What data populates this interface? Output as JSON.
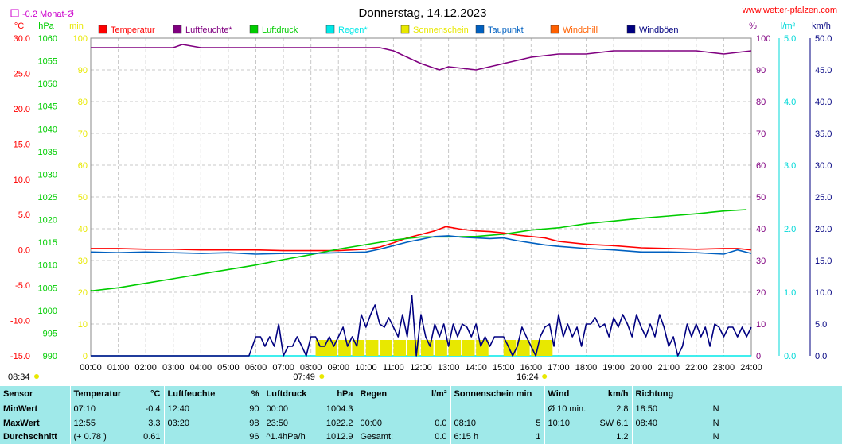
{
  "header": {
    "title": "Donnerstag, 14.12.2023",
    "source": "www.wetter-pfalzen.com",
    "monthly_avg_label": "-0.2 Monat-Ø"
  },
  "chart_data": {
    "type": "line",
    "title": "Donnerstag, 14.12.2023",
    "x_ticks": [
      "00:00",
      "01:00",
      "02:00",
      "03:00",
      "04:00",
      "05:00",
      "06:00",
      "07:00",
      "08:00",
      "09:00",
      "10:00",
      "11:00",
      "12:00",
      "13:00",
      "14:00",
      "15:00",
      "16:00",
      "17:00",
      "18:00",
      "19:00",
      "20:00",
      "21:00",
      "22:00",
      "23:00",
      "24:00"
    ],
    "xlim": [
      0,
      24
    ],
    "grid": true,
    "legend_position": "top",
    "axes": {
      "temp": {
        "unit": "°C",
        "range": [
          -15,
          30
        ],
        "ticks": [
          "30.0",
          "25.0",
          "20.0",
          "15.0",
          "10.0",
          "5.0",
          "0.0",
          "-5.0",
          "-10.0",
          "-15.0"
        ],
        "color": "#ff0000"
      },
      "pressure": {
        "unit": "hPa",
        "range": [
          990,
          1060
        ],
        "ticks": [
          "1060",
          "1055",
          "1050",
          "1045",
          "1040",
          "1035",
          "1030",
          "1025",
          "1020",
          "1015",
          "1010",
          "1005",
          "1000",
          "995",
          "990"
        ],
        "color": "#00cc00"
      },
      "minutes": {
        "unit": "min",
        "range": [
          0,
          100
        ],
        "ticks": [
          "100",
          "90",
          "80",
          "70",
          "60",
          "50",
          "40",
          "30",
          "20",
          "10",
          "0"
        ],
        "color": "#e8e800"
      },
      "humidity": {
        "unit": "%",
        "range": [
          0,
          100
        ],
        "ticks": [
          "100",
          "90",
          "80",
          "70",
          "60",
          "50",
          "40",
          "30",
          "20",
          "10",
          "0"
        ],
        "color": "#800080"
      },
      "rain": {
        "unit": "l/m²",
        "range": [
          0,
          5
        ],
        "ticks": [
          "5.0",
          "4.0",
          "3.0",
          "2.0",
          "1.0",
          "0.0"
        ],
        "color": "#00d8d8"
      },
      "wind": {
        "unit": "km/h",
        "range": [
          0,
          50
        ],
        "ticks": [
          "50.0",
          "45.0",
          "40.0",
          "35.0",
          "30.0",
          "25.0",
          "20.0",
          "15.0",
          "10.0",
          "5.0",
          "0.0"
        ],
        "color": "#000080"
      }
    },
    "series": [
      {
        "name": "Temperatur",
        "color": "#ff0000",
        "axis": "temp",
        "x": [
          0,
          1,
          2,
          3,
          4,
          5,
          6,
          7,
          8,
          9,
          10,
          10.5,
          11,
          11.5,
          12,
          12.5,
          12.9,
          13.5,
          14,
          14.5,
          15,
          15.5,
          16,
          16.5,
          17,
          18,
          19,
          20,
          21,
          22,
          23,
          23.5,
          24
        ],
        "y": [
          0.2,
          0.2,
          0.1,
          0.1,
          0.0,
          0.0,
          0.0,
          -0.1,
          -0.1,
          -0.1,
          0.1,
          0.4,
          1.0,
          1.7,
          2.2,
          2.7,
          3.3,
          2.9,
          2.7,
          2.6,
          2.4,
          2.1,
          1.9,
          1.7,
          1.2,
          0.8,
          0.6,
          0.3,
          0.2,
          0.1,
          0.2,
          0.2,
          0.0
        ]
      },
      {
        "name": "Luftfeuchte*",
        "color": "#800080",
        "axis": "humidity",
        "x": [
          0,
          1,
          2,
          3,
          3.33,
          4,
          5,
          6,
          7,
          8,
          9,
          10,
          10.5,
          11,
          11.5,
          12,
          12.67,
          13,
          14,
          14.5,
          15,
          15.5,
          16,
          17,
          18,
          19,
          20,
          21,
          22,
          23,
          24
        ],
        "y": [
          97,
          97,
          97,
          97,
          98,
          97,
          97,
          97,
          97,
          97,
          97,
          97,
          97,
          96,
          94,
          92,
          90,
          91,
          90,
          91,
          92,
          93,
          94,
          95,
          95,
          96,
          96,
          96,
          96,
          95,
          96
        ]
      },
      {
        "name": "Luftdruck",
        "color": "#00cc00",
        "axis": "pressure",
        "x": [
          0,
          0.02,
          1,
          2,
          3,
          4,
          5,
          6,
          7,
          8,
          9,
          10,
          11,
          12,
          13,
          14,
          15,
          16,
          17,
          18,
          19,
          20,
          21,
          22,
          23,
          23.83
        ],
        "y": [
          1004.5,
          1004.3,
          1005,
          1006,
          1007,
          1008,
          1009,
          1010,
          1011.2,
          1012.3,
          1013.5,
          1014.5,
          1015.5,
          1016.2,
          1016.2,
          1016.3,
          1016.8,
          1017.7,
          1018.2,
          1019.1,
          1019.7,
          1020.3,
          1020.8,
          1021.3,
          1021.9,
          1022.2
        ]
      },
      {
        "name": "Regen*",
        "color": "#00e8e8",
        "axis": "rain",
        "x": [
          0,
          24
        ],
        "y": [
          0,
          0
        ]
      },
      {
        "name": "Sonnenschein",
        "color": "#e8e800",
        "axis": "minutes",
        "x": [
          8.17,
          8.5,
          9,
          9.5,
          10,
          10.5,
          11,
          11.5,
          12,
          12.5,
          13,
          13.5,
          14,
          15,
          15.5,
          16,
          16.33
        ],
        "y": [
          5,
          5,
          5,
          5,
          5,
          5,
          5,
          5,
          5,
          5,
          5,
          5,
          5,
          5,
          5,
          5,
          5
        ]
      },
      {
        "name": "Taupunkt",
        "color": "#0060c0",
        "axis": "temp",
        "x": [
          0,
          1,
          2,
          3,
          4,
          5,
          6,
          7,
          8,
          9,
          10,
          10.5,
          11,
          11.5,
          12,
          12.5,
          13,
          13.5,
          14,
          14.5,
          15,
          15.5,
          16,
          16.5,
          17,
          18,
          19,
          20,
          21,
          22,
          23,
          23.5,
          24
        ],
        "y": [
          -0.3,
          -0.4,
          -0.3,
          -0.4,
          -0.5,
          -0.4,
          -0.6,
          -0.5,
          -0.5,
          -0.4,
          -0.3,
          0.1,
          0.6,
          1.1,
          1.5,
          1.9,
          2.0,
          1.8,
          1.7,
          1.6,
          1.7,
          1.3,
          1.0,
          0.7,
          0.5,
          0.2,
          0.0,
          -0.3,
          -0.3,
          -0.4,
          -0.6,
          0.0,
          -0.5
        ]
      },
      {
        "name": "Windchill",
        "color": "#ff6000",
        "axis": "temp",
        "x": [],
        "y": []
      },
      {
        "name": "Windböen",
        "color": "#000080",
        "axis": "wind",
        "x": [
          0,
          5.75,
          6,
          6.17,
          6.33,
          6.5,
          6.67,
          6.83,
          7,
          7.17,
          7.33,
          7.5,
          7.67,
          7.83,
          8,
          8.17,
          8.33,
          8.5,
          8.67,
          8.83,
          9,
          9.17,
          9.33,
          9.5,
          9.67,
          9.83,
          10,
          10.17,
          10.33,
          10.5,
          10.67,
          10.83,
          11,
          11.17,
          11.33,
          11.5,
          11.67,
          11.83,
          12,
          12.17,
          12.33,
          12.5,
          12.67,
          12.83,
          13,
          13.17,
          13.33,
          13.5,
          13.67,
          13.83,
          14,
          14.17,
          14.33,
          14.5,
          14.67,
          14.83,
          15,
          15.17,
          15.33,
          15.5,
          15.67,
          15.83,
          16,
          16.17,
          16.33,
          16.5,
          16.67,
          16.83,
          17,
          17.17,
          17.33,
          17.5,
          17.67,
          17.83,
          18,
          18.17,
          18.33,
          18.5,
          18.67,
          18.83,
          19,
          19.17,
          19.33,
          19.5,
          19.67,
          19.83,
          20,
          20.17,
          20.33,
          20.5,
          20.67,
          20.83,
          21,
          21.17,
          21.33,
          21.5,
          21.67,
          21.83,
          22,
          22.17,
          22.33,
          22.5,
          22.67,
          22.83,
          23,
          23.17,
          23.33,
          23.5,
          23.67,
          23.83,
          24
        ],
        "y": [
          0,
          0,
          3,
          3,
          1.5,
          3,
          1.5,
          5,
          0,
          1.5,
          1.5,
          3,
          1.5,
          0,
          3,
          3,
          1.5,
          1.5,
          3,
          1.5,
          3,
          4.5,
          1.5,
          3,
          1.5,
          6.5,
          4.5,
          6.5,
          8,
          5,
          4.5,
          6,
          4.5,
          3,
          6.5,
          3,
          9.5,
          0,
          6.5,
          3,
          1.5,
          5,
          3,
          5,
          1.5,
          5,
          3,
          5,
          4.5,
          3,
          5,
          1.5,
          3,
          1.5,
          3,
          3,
          3,
          1.5,
          0,
          1.5,
          4.5,
          3,
          1.5,
          0,
          3,
          4.5,
          5,
          1.5,
          6.5,
          3,
          5,
          3,
          4.5,
          1.5,
          5,
          5,
          6,
          4.5,
          5,
          3,
          6,
          4.5,
          6.5,
          5,
          3,
          6.5,
          4.5,
          3,
          5,
          3,
          6.5,
          4.5,
          1.5,
          3,
          0,
          1.5,
          5,
          3,
          5,
          3,
          4.5,
          1.5,
          5,
          4.5,
          3,
          4.5,
          4.5,
          3,
          4.5,
          3,
          4.5
        ]
      }
    ],
    "markers": {
      "sunrise": "07:49",
      "sunset": "16:24",
      "morning_marker": "08:34"
    }
  },
  "table": {
    "headers": {
      "sensor": "Sensor",
      "temp": "Temperatur",
      "temp_unit": "°C",
      "hum": "Luftfeuchte",
      "hum_unit": "%",
      "press": "Luftdruck",
      "press_unit": "hPa",
      "rain": "Regen",
      "rain_unit": "l/m²",
      "sun": "Sonnenschein min",
      "wind": "Wind",
      "wind_unit": "km/h",
      "dir": "Richtung"
    },
    "rows": [
      {
        "label": "MinWert",
        "temp_time": "07:10",
        "temp_val": "-0.4",
        "hum_time": "12:40",
        "hum_val": "90",
        "press_time": "00:00",
        "press_val": "1004.3",
        "rain_time": "",
        "rain_val": "",
        "sun_time": "",
        "sun_val": "",
        "wind_time": "Ø 10 min.",
        "wind_val": "2.8",
        "dir_time": "18:50",
        "dir_val": "N"
      },
      {
        "label": "MaxWert",
        "temp_time": "12:55",
        "temp_val": "3.3",
        "hum_time": "03:20",
        "hum_val": "98",
        "press_time": "23:50",
        "press_val": "1022.2",
        "rain_time": "00:00",
        "rain_val": "0.0",
        "sun_time": "08:10",
        "sun_val": "5",
        "wind_time": "10:10",
        "wind_val": "SW 6.1",
        "dir_time": "08:40",
        "dir_val": "N"
      },
      {
        "label": "Durchschnitt",
        "temp_time": "(+ 0.78 )",
        "temp_val": "0.61",
        "hum_time": "",
        "hum_val": "96",
        "press_time": "^1.4hPa/h",
        "press_val": "1012.9",
        "rain_time": "Gesamt:",
        "rain_val": "0.0",
        "sun_time": "6:15 h",
        "sun_val": "1",
        "wind_time": "",
        "wind_val": "1.2",
        "dir_time": "",
        "dir_val": "N"
      }
    ]
  }
}
